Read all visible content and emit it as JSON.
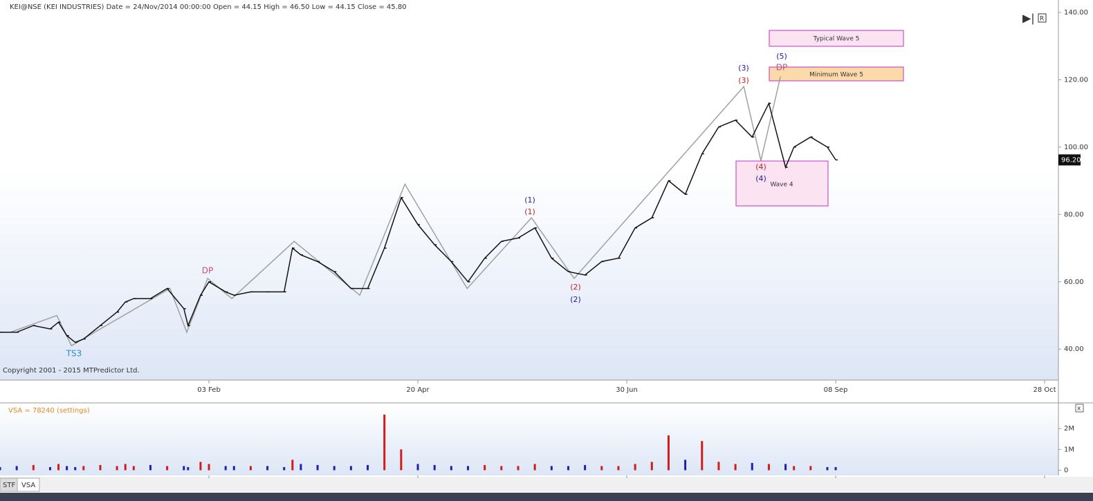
{
  "header": "KEI@NSE (KEI INDUSTRIES) Date = 24/Nov/2014 00:00:00 Open = 44.15 High = 46.50 Low = 44.15 Close = 45.80",
  "copyright": "Copyright 2001 - 2015 MTPredictor Ltd.",
  "tabs": [
    "STF",
    "VSA"
  ],
  "chart_data": [
    {
      "type": "line",
      "x": [
        0,
        4,
        8,
        12,
        14,
        16,
        18,
        20,
        24,
        28,
        30,
        32,
        36,
        40,
        44,
        45,
        48,
        50,
        54,
        56,
        60,
        64,
        68,
        70,
        72,
        76,
        80,
        84,
        88,
        92,
        96,
        100,
        104,
        108,
        112,
        116,
        120,
        124,
        128,
        132,
        136,
        140,
        144,
        148,
        152,
        156,
        160,
        164,
        168,
        172,
        176,
        180,
        184,
        188,
        190,
        194,
        198,
        200
      ],
      "series": [
        {
          "color": "#111111",
          "values": [
            45,
            45,
            47,
            46,
            48,
            44,
            42,
            43,
            47,
            51,
            54,
            55,
            55,
            58,
            52,
            47,
            56,
            60,
            57,
            56,
            57,
            57,
            57,
            70,
            68,
            66,
            63,
            58,
            58,
            70,
            85,
            77,
            71,
            66,
            60,
            67,
            72,
            73,
            76,
            67,
            63,
            62,
            66,
            67,
            76,
            79,
            90,
            86,
            98,
            106,
            108,
            103,
            113,
            94,
            100,
            103,
            100,
            96.2
          ]
        }
      ],
      "wave": {
        "color": "#a0a0a0",
        "x": [
          2.5,
          13.6,
          17.1,
          40.7,
          44.7,
          49.7,
          55.5,
          70.4,
          86.1,
          96.9,
          111.8,
          127.2,
          137.4,
          178,
          182.1,
          186.8
        ],
        "values": [
          45,
          50,
          41,
          58,
          45,
          61,
          55,
          72,
          56,
          89,
          58,
          79,
          61,
          118,
          96,
          121
        ]
      },
      "last_price": {
        "value": 96.2,
        "label": "96.20"
      },
      "annotations": [
        "DP",
        "TS3",
        "(1)",
        "(1)",
        "(2)",
        "(2)",
        "(3)",
        "(3)",
        "(4)",
        "(4)",
        "(5)",
        "DP",
        "Typical Wave 5",
        "Minimum Wave 5",
        "Wave 4"
      ],
      "xlim": [
        0,
        253.3
      ],
      "xticks": [
        {
          "value": 50,
          "label": "03 Feb"
        },
        {
          "value": 100,
          "label": "20 Apr"
        },
        {
          "value": 150,
          "label": "30 Jun"
        },
        {
          "value": 200,
          "label": "08 Sep"
        },
        {
          "value": 250,
          "label": "28 Oct"
        }
      ],
      "ylim": [
        30.8,
        143.7
      ],
      "yticks": [
        {
          "value": 40,
          "label": "40.00"
        },
        {
          "value": 60,
          "label": "60.00"
        },
        {
          "value": 80,
          "label": "80.00"
        },
        {
          "value": 100,
          "label": "100.00"
        },
        {
          "value": 120,
          "label": "120.00"
        },
        {
          "value": 140,
          "label": "140.00"
        }
      ]
    },
    {
      "type": "bar",
      "title": "VSA = 78240 (settings)",
      "series": [
        {
          "color": "#1f1fb4",
          "up_color": "#d01c1c",
          "values": [
            150000,
            200000,
            250000,
            150000,
            300000,
            200000,
            150000,
            200000,
            250000,
            200000,
            300000,
            200000,
            250000,
            200000,
            200000,
            150000,
            400000,
            300000,
            200000,
            200000,
            200000,
            200000,
            150000,
            500000,
            300000,
            250000,
            200000,
            200000,
            250000,
            2670000,
            1000000,
            300000,
            250000,
            200000,
            200000,
            250000,
            200000,
            200000,
            300000,
            200000,
            200000,
            250000,
            200000,
            200000,
            300000,
            400000,
            1670000,
            500000,
            1400000,
            400000,
            300000,
            350000,
            300000,
            300000,
            200000,
            200000,
            150000,
            150000
          ]
        }
      ],
      "ylim": [
        -250000,
        3000000
      ],
      "yticks": [
        {
          "value": 0,
          "label": "0"
        },
        {
          "value": 1000000,
          "label": "1M"
        },
        {
          "value": 2000000,
          "label": "2M"
        }
      ]
    }
  ]
}
